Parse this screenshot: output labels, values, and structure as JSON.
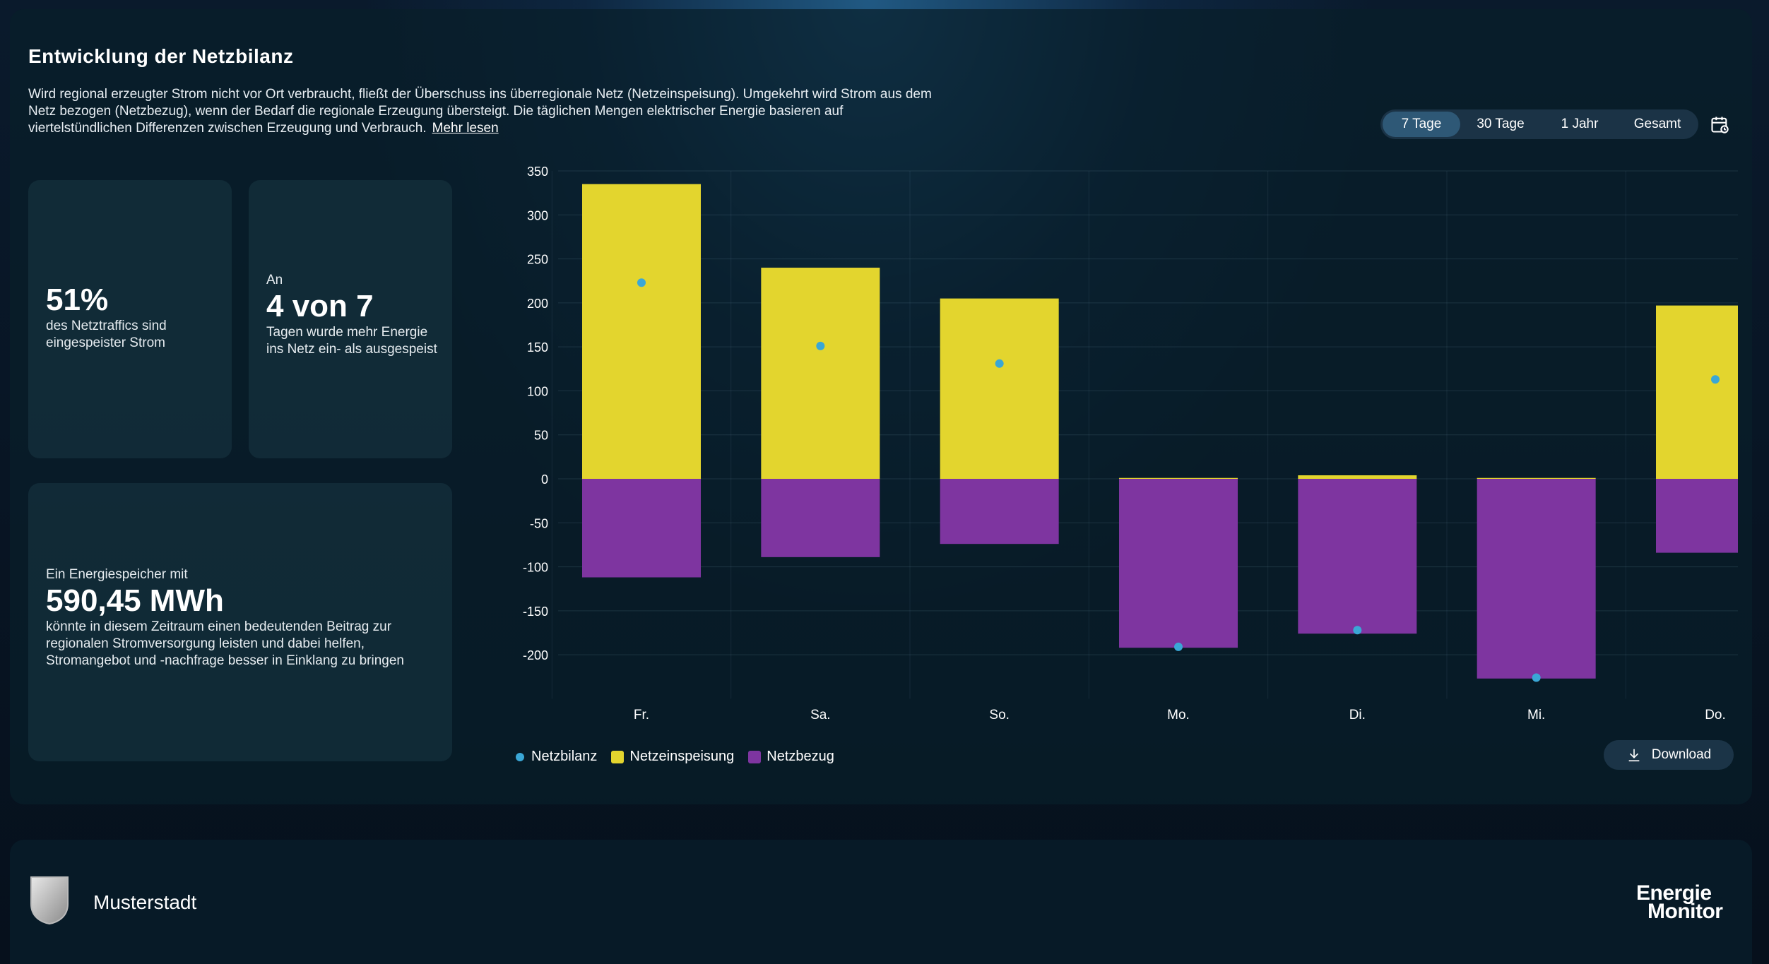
{
  "header": {
    "title": "Entwicklung der Netzbilanz",
    "description": "Wird regional erzeugter Strom nicht vor Ort verbraucht, fließt der Überschuss ins überregionale Netz (Netzeinspeisung). Umgekehrt wird Strom aus dem Netz bezogen (Netzbezug), wenn der Bedarf die regionale Erzeugung übersteigt. Die täglichen Mengen elektrischer Energie basieren auf viertelstündlichen Differenzen zwischen Erzeugung und Verbrauch.",
    "read_more": "Mehr lesen"
  },
  "range_selector": {
    "options": [
      "7 Tage",
      "30 Tage",
      "1 Jahr",
      "Gesamt"
    ],
    "selected": "7 Tage"
  },
  "cards": {
    "share": {
      "value": "51%",
      "text": "des Netztraffics sind eingespeister Strom"
    },
    "days": {
      "prefix": "An",
      "value": "4 von 7",
      "text": "Tagen wurde mehr Energie ins Netz ein- als ausgespeist"
    },
    "storage": {
      "prefix": "Ein Energiespeicher mit",
      "value": "590,45 MWh",
      "text": "könnte in diesem Zeitraum einen bedeutenden Beitrag zur regionalen Stromversorgung leisten und dabei helfen, Stromangebot und -nachfrage besser in Einklang zu bringen"
    }
  },
  "chart_data": {
    "type": "bar",
    "categories": [
      "Fr.",
      "Sa.",
      "So.",
      "Mo.",
      "Di.",
      "Mi.",
      "Do."
    ],
    "series": [
      {
        "name": "Netzeinspeisung",
        "values": [
          335,
          240,
          205,
          1,
          4,
          1,
          197
        ],
        "color": "#e3d52e"
      },
      {
        "name": "Netzbezug",
        "values": [
          -112,
          -89,
          -74,
          -192,
          -176,
          -227,
          -84
        ],
        "color": "#7e35a0"
      },
      {
        "name": "Netzbilanz",
        "values": [
          223,
          151,
          131,
          -191,
          -172,
          -226,
          113
        ],
        "color": "#3aa7d6"
      }
    ],
    "yticks": [
      350,
      300,
      250,
      200,
      150,
      100,
      50,
      0,
      -50,
      -100,
      -150,
      -200
    ],
    "ylim": [
      -250,
      350
    ]
  },
  "legend": {
    "items": [
      "Netzbilanz",
      "Netzeinspeisung",
      "Netzbezug"
    ]
  },
  "download": {
    "label": "Download",
    "icon": "download-icon"
  },
  "footer": {
    "city": "Musterstadt",
    "brand_line1": "Energie",
    "brand_line2": "Monitor"
  }
}
